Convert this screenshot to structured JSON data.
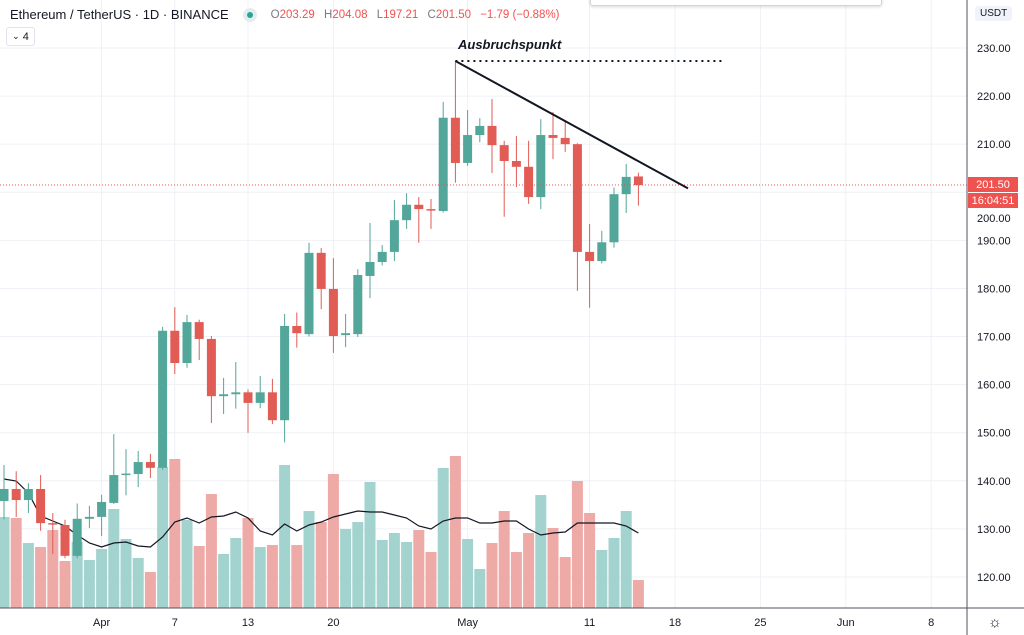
{
  "header": {
    "symbol": "Ethereum / TetherUS · 1D · BINANCE",
    "open_label": "O",
    "open": "203.29",
    "high_label": "H",
    "high": "204.08",
    "low_label": "L",
    "low": "197.21",
    "close_label": "C",
    "close": "201.50",
    "change": "−1.79 (−0.88%)",
    "indicator_count": "4",
    "collapse_icon": "chevron-down-icon",
    "status_icon": "market-status-dot-icon"
  },
  "currency_label": "USDT",
  "annotation": "Ausbruchspunkt",
  "price_tag": "201.50",
  "countdown_tag": "16:04:51",
  "settings_icon": "gear-icon",
  "colors": {
    "up": "#53a69a",
    "down": "#e05c55",
    "vol_up": "#a3d3ce",
    "vol_down": "#eeaaa7",
    "grid": "#eef1f5",
    "price_line": "#ef5350"
  },
  "chart_data": {
    "type": "candlestick",
    "title": "Ethereum / TetherUS · 1D · BINANCE",
    "ylim": [
      115,
      235
    ],
    "y_ticks": [
      "120.00",
      "130.00",
      "140.00",
      "150.00",
      "160.00",
      "170.00",
      "180.00",
      "190.00",
      "200.00",
      "210.00",
      "220.00",
      "230.00"
    ],
    "x_ticks": [
      {
        "label": "Apr",
        "date": "Apr 1"
      },
      {
        "label": "7",
        "date": "Apr 7"
      },
      {
        "label": "13",
        "date": "Apr 13"
      },
      {
        "label": "20",
        "date": "Apr 20"
      },
      {
        "label": "May",
        "date": "May 1"
      },
      {
        "label": "11",
        "date": "May 11"
      },
      {
        "label": "18",
        "date": "May 18"
      },
      {
        "label": "25",
        "date": "May 25"
      },
      {
        "label": "Jun",
        "date": "Jun 1"
      },
      {
        "label": "8",
        "date": "Jun 8"
      }
    ],
    "first_date": "Mar 24",
    "grid": true,
    "candles": [
      [
        135.8,
        143.3,
        132.0,
        138.3
      ],
      [
        138.3,
        142.0,
        132.5,
        136.0
      ],
      [
        136.0,
        139.5,
        133.3,
        138.3
      ],
      [
        138.3,
        141.2,
        129.6,
        131.2
      ],
      [
        131.2,
        133.3,
        124.8,
        131.0
      ],
      [
        130.8,
        131.9,
        123.9,
        124.4
      ],
      [
        124.4,
        135.3,
        123.9,
        132.1
      ],
      [
        132.1,
        134.8,
        130.2,
        132.5
      ],
      [
        132.5,
        137.1,
        128.5,
        135.6
      ],
      [
        135.4,
        149.7,
        135.2,
        141.2
      ],
      [
        141.2,
        146.6,
        137.0,
        141.5
      ],
      [
        141.4,
        146.2,
        138.7,
        143.9
      ],
      [
        143.9,
        145.6,
        140.6,
        142.7
      ],
      [
        142.7,
        172.0,
        142.3,
        171.2
      ],
      [
        171.2,
        176.1,
        162.2,
        164.5
      ],
      [
        164.5,
        174.5,
        163.5,
        173.0
      ],
      [
        173.0,
        173.5,
        165.1,
        169.5
      ],
      [
        169.5,
        170.1,
        152.0,
        157.6
      ],
      [
        157.6,
        161.4,
        153.9,
        158.0
      ],
      [
        158.0,
        164.7,
        155.0,
        158.4
      ],
      [
        158.4,
        159.0,
        150.0,
        156.2
      ],
      [
        156.2,
        161.8,
        155.1,
        158.4
      ],
      [
        158.4,
        161.2,
        151.8,
        152.6
      ],
      [
        152.6,
        174.7,
        148.0,
        172.2
      ],
      [
        172.2,
        175.0,
        167.7,
        170.7
      ],
      [
        170.5,
        189.5,
        170.0,
        187.4
      ],
      [
        187.4,
        188.4,
        175.7,
        179.9
      ],
      [
        179.9,
        186.3,
        166.6,
        170.1
      ],
      [
        170.3,
        174.7,
        167.8,
        170.7
      ],
      [
        170.5,
        184.0,
        169.9,
        182.8
      ],
      [
        182.6,
        193.6,
        178.0,
        185.5
      ],
      [
        185.5,
        189.0,
        184.8,
        187.6
      ],
      [
        187.6,
        198.4,
        185.7,
        194.2
      ],
      [
        194.2,
        199.8,
        192.4,
        197.4
      ],
      [
        197.4,
        199.0,
        189.5,
        196.5
      ],
      [
        196.5,
        198.6,
        192.4,
        196.3
      ],
      [
        196.1,
        218.8,
        195.8,
        215.5
      ],
      [
        215.5,
        227.3,
        202.0,
        206.1
      ],
      [
        206.1,
        217.1,
        205.5,
        211.9
      ],
      [
        211.9,
        215.4,
        210.4,
        213.8
      ],
      [
        213.8,
        219.4,
        204.0,
        209.8
      ],
      [
        209.8,
        210.7,
        194.9,
        206.5
      ],
      [
        206.5,
        211.7,
        201.1,
        205.3
      ],
      [
        205.3,
        210.7,
        197.6,
        199.0
      ],
      [
        199.0,
        215.2,
        196.5,
        211.9
      ],
      [
        211.9,
        216.7,
        206.9,
        211.3
      ],
      [
        211.3,
        215.0,
        208.4,
        210.0
      ],
      [
        210.0,
        210.2,
        179.5,
        187.6
      ],
      [
        187.6,
        193.4,
        176.0,
        185.7
      ],
      [
        185.7,
        192.0,
        185.2,
        189.6
      ],
      [
        189.6,
        201.0,
        188.5,
        199.6
      ],
      [
        199.6,
        205.9,
        195.7,
        203.2
      ],
      [
        203.29,
        204.08,
        197.21,
        201.5
      ]
    ],
    "volume_relative": [
      91,
      90,
      65,
      61,
      78,
      47,
      66,
      48,
      59,
      99,
      69,
      50,
      36,
      141,
      149,
      88,
      62,
      114,
      54,
      70,
      90,
      61,
      63,
      143,
      63,
      97,
      86,
      134,
      79,
      86,
      126,
      68,
      75,
      66,
      78,
      56,
      140,
      152,
      69,
      39,
      65,
      97,
      56,
      75,
      113,
      80,
      51,
      127,
      95,
      58,
      70,
      97,
      28
    ],
    "volume_ma_relative": [
      129,
      127,
      115,
      92,
      87,
      82,
      73,
      65,
      61,
      65,
      66,
      62,
      61,
      71,
      86,
      90,
      85,
      91,
      92,
      96,
      90,
      77,
      73,
      84,
      77,
      83,
      86,
      91,
      94,
      97,
      96,
      96,
      93,
      90,
      82,
      79,
      87,
      90,
      90,
      85,
      85,
      87,
      87,
      79,
      73,
      75,
      76,
      85,
      85,
      85,
      85,
      82,
      75
    ],
    "drawings": {
      "breakout_level": 227.3,
      "trendline": {
        "from": {
          "date": "Apr 30",
          "price": 227.3
        },
        "to": {
          "date": "May 19",
          "price": 200.8
        }
      }
    }
  }
}
